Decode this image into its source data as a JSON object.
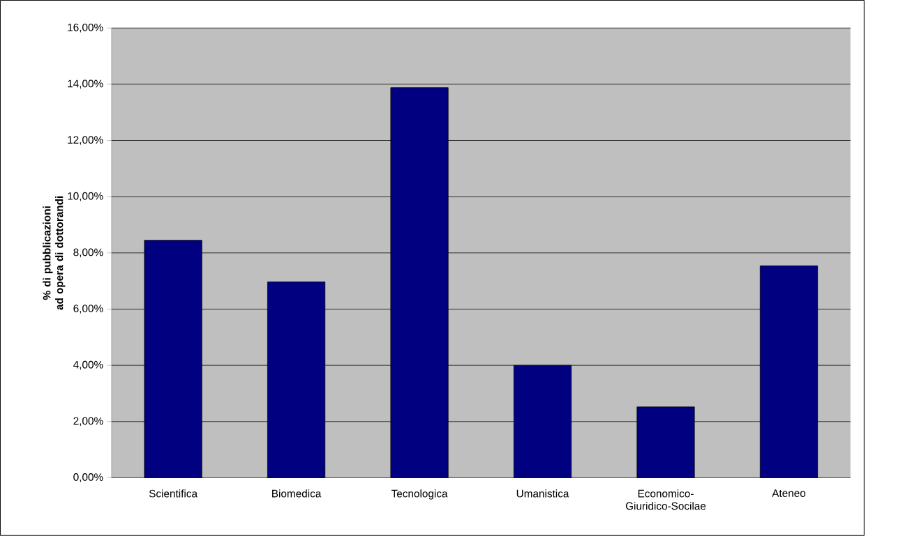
{
  "chart_data": {
    "type": "bar",
    "ylabel": "% di pubblicazioni ad opera di dottorandi",
    "categories": [
      "Scientifica",
      "Biomedica",
      "Tecnologica",
      "Umanistica",
      "Economico-Giuridico-Socilae",
      "Ateneo"
    ],
    "values": [
      8.45,
      6.97,
      13.88,
      4.0,
      2.52,
      7.54
    ],
    "color": "#000080",
    "ylim": [
      0,
      16
    ],
    "yticks": [
      {
        "value": 0,
        "label": "0,00%"
      },
      {
        "value": 2,
        "label": "2,00%"
      },
      {
        "value": 4,
        "label": "4,00%"
      },
      {
        "value": 6,
        "label": "6,00%"
      },
      {
        "value": 8,
        "label": "8,00%"
      },
      {
        "value": 10,
        "label": "10,00%"
      },
      {
        "value": 12,
        "label": "12,00%"
      },
      {
        "value": 14,
        "label": "14,00%"
      },
      {
        "value": 16,
        "label": "16,00%"
      }
    ],
    "grid": "y"
  }
}
